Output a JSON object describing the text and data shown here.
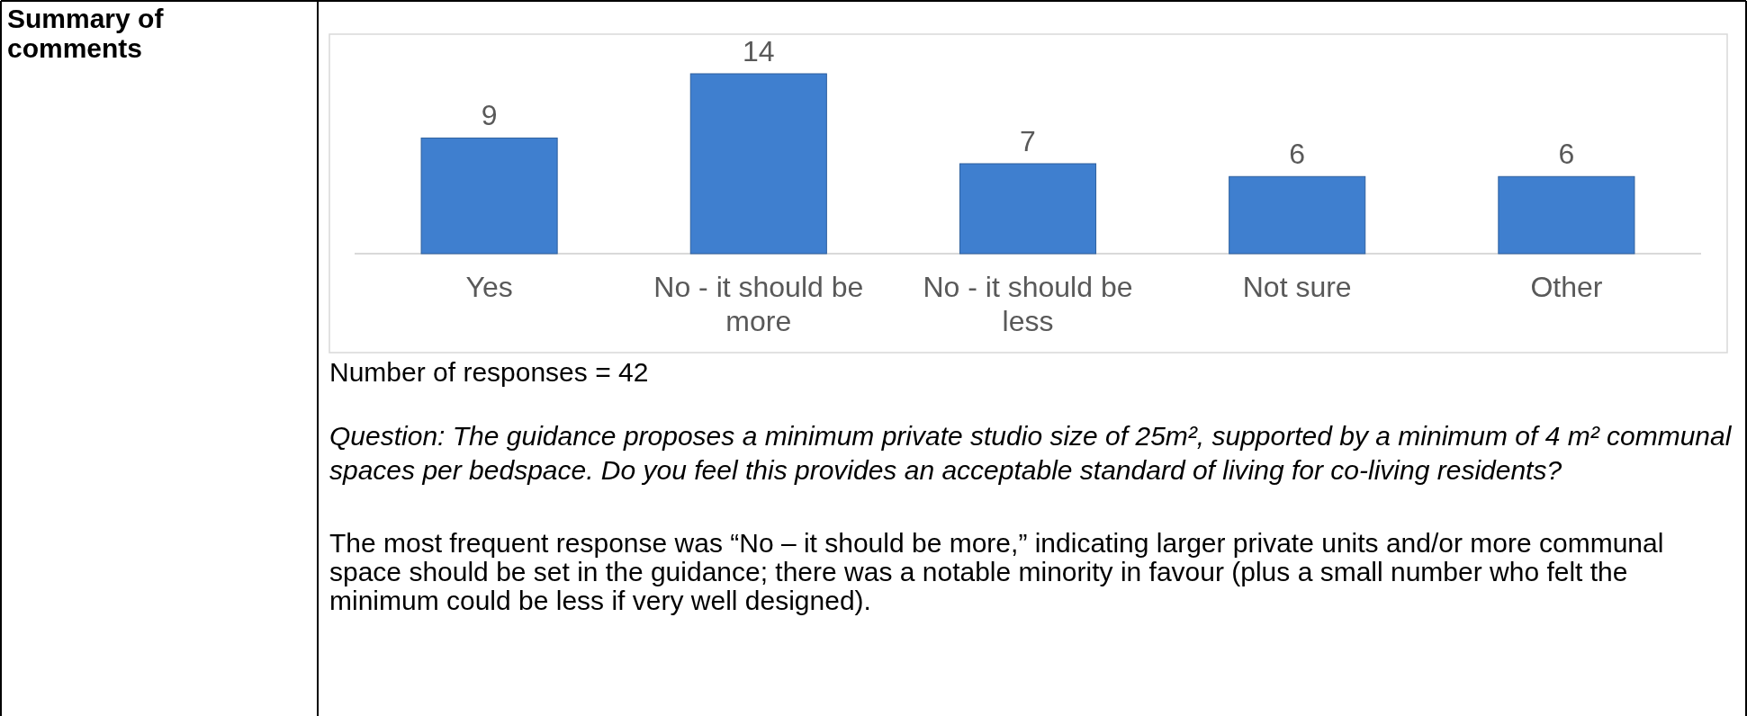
{
  "chart_data": {
    "type": "bar",
    "categories": [
      "Yes",
      "No - it should be more",
      "No - it should be less",
      "Not sure",
      "Other"
    ],
    "values": [
      9,
      14,
      7,
      6,
      6
    ],
    "color": "#3f7fcf",
    "data_labels": true,
    "annotations": [
      "Summary of comments",
      "Number of responses = 42",
      "Question: The guidance proposes a minimum private studio size of 25m², supported by a minimum of 4 m² communal spaces per bedspace. Do you feel this provides an acceptable standard of living for co-living residents?",
      "The most frequent response was “No – it should be more,” indicating larger private units and/or more communal space should be set in the guidance; there was a notable minority in favour (plus a small number who felt the minimum could be less if very well designed)."
    ]
  }
}
